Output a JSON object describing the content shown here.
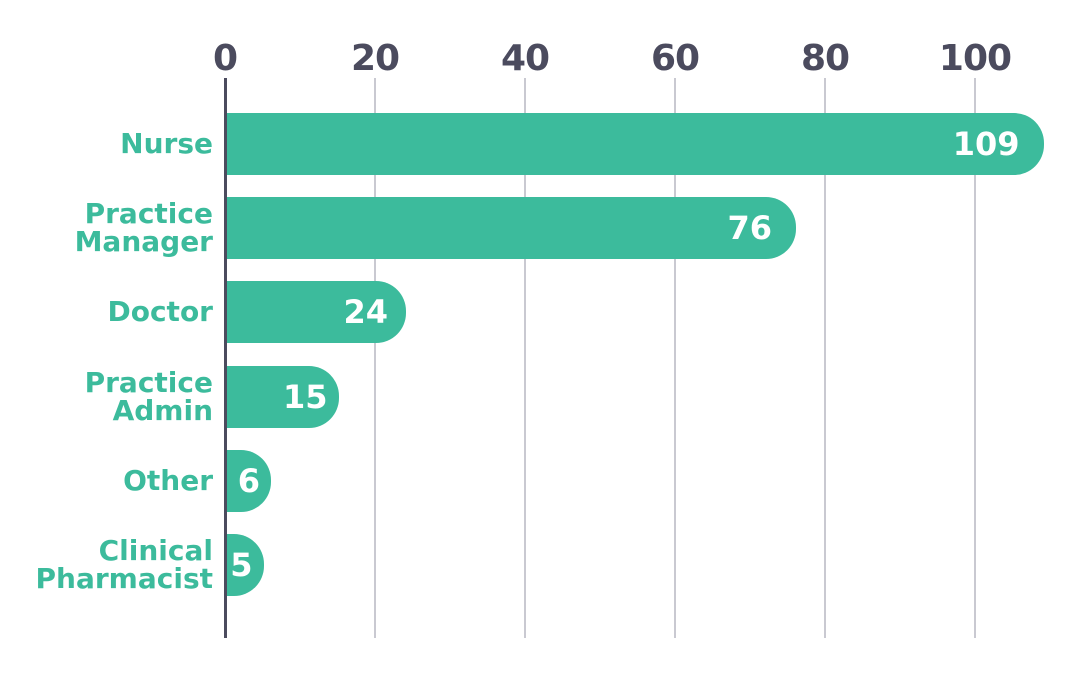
{
  "chart_data": {
    "type": "bar",
    "orientation": "horizontal",
    "title": "",
    "categories": [
      "Nurse",
      "Practice Manager",
      "Doctor",
      "Practice Admin",
      "Other",
      "Clinical Pharmacist"
    ],
    "category_label_lines": [
      [
        "Nurse"
      ],
      [
        "Practice",
        "Manager"
      ],
      [
        "Doctor"
      ],
      [
        "Practice",
        "Admin"
      ],
      [
        "Other"
      ],
      [
        "Clinical",
        "Pharmacist"
      ]
    ],
    "values": [
      109,
      76,
      24,
      15,
      6,
      5
    ],
    "value_labels": [
      "109",
      "76",
      "24",
      "15",
      "6",
      "5"
    ],
    "x_ticks": [
      "0",
      "20",
      "40",
      "60",
      "80",
      "100"
    ],
    "x_tick_values": [
      0,
      20,
      40,
      60,
      80,
      100
    ],
    "xlim": [
      0,
      113
    ],
    "grid": "vertical-gridlines-on",
    "legend": "none",
    "colors": {
      "bar": "#3cbb9c",
      "category_label": "#3cbb9c",
      "tick_label": "#4b4b5e",
      "axis_line": "#4b4b5e",
      "gridline": "#c9c9d1",
      "value_label": "#ffffff",
      "background": "#ffffff"
    }
  }
}
